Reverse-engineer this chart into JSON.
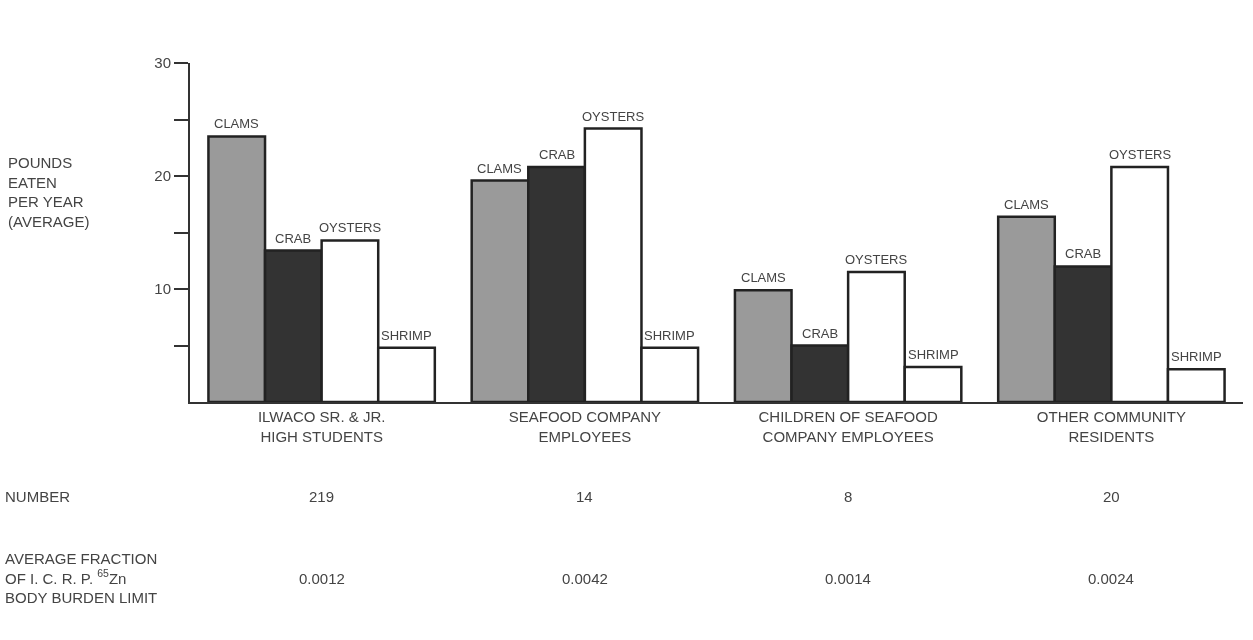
{
  "chart_data": {
    "type": "bar",
    "ylabel": "POUNDS\nEATEN\nPER YEAR\n(AVERAGE)",
    "categories": [
      "ILWACO SR. & JR.\nHIGH STUDENTS",
      "SEAFOOD COMPANY\nEMPLOYEES",
      "CHILDREN OF SEAFOOD\nCOMPANY EMPLOYEES",
      "OTHER COMMUNITY\nRESIDENTS"
    ],
    "series": [
      {
        "name": "CLAMS",
        "color": "#9a9a9a",
        "values": [
          23.5,
          19.6,
          9.9,
          16.4
        ]
      },
      {
        "name": "CRAB",
        "color": "#333333",
        "values": [
          13.4,
          20.8,
          5.0,
          12.0
        ]
      },
      {
        "name": "OYSTERS",
        "color": "#ffffff",
        "values": [
          14.3,
          24.2,
          11.5,
          20.8
        ]
      },
      {
        "name": "SHRIMP",
        "color": "#ffffff",
        "values": [
          4.8,
          4.8,
          3.1,
          2.9
        ]
      }
    ],
    "ylim": [
      0,
      30
    ],
    "yticks": [
      {
        "value": 5,
        "label": null
      },
      10,
      {
        "value": 15,
        "label": null
      },
      20,
      {
        "value": 25,
        "label": null
      },
      30
    ],
    "grid": false,
    "legend": false,
    "annotations": [
      "NUMBER",
      "219",
      "14",
      "8",
      "20",
      "AVERAGE FRACTION\nOF I. C. R. P. $^{65}$Zn\nBODY BURDEN LIMIT",
      "0.0012",
      "0.0042",
      "0.0014",
      "0.0024"
    ]
  }
}
